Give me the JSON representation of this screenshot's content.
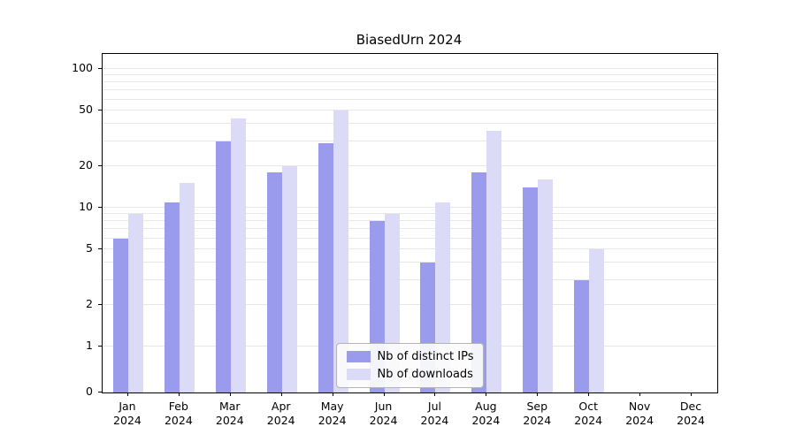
{
  "title": "BiasedUrn 2024",
  "colors": {
    "distinct_ips": "#9b9bee",
    "downloads": "#dbdbf8",
    "grid": "#e7e7e7",
    "axis": "#000000"
  },
  "legend": {
    "items": [
      {
        "label": "Nb of distinct IPs",
        "color_key": "distinct_ips"
      },
      {
        "label": "Nb of downloads",
        "color_key": "downloads"
      }
    ]
  },
  "x_axis": {
    "months": [
      "Jan",
      "Feb",
      "Mar",
      "Apr",
      "May",
      "Jun",
      "Jul",
      "Aug",
      "Sep",
      "Oct",
      "Nov",
      "Dec"
    ],
    "year": "2024"
  },
  "chart_data": {
    "type": "bar",
    "title": "BiasedUrn 2024",
    "categories": [
      "Jan 2024",
      "Feb 2024",
      "Mar 2024",
      "Apr 2024",
      "May 2024",
      "Jun 2024",
      "Jul 2024",
      "Aug 2024",
      "Sep 2024",
      "Oct 2024",
      "Nov 2024",
      "Dec 2024"
    ],
    "series": [
      {
        "name": "Nb of distinct IPs",
        "values": [
          6,
          11,
          30,
          18,
          29,
          8,
          4,
          18,
          14,
          3,
          0,
          0
        ]
      },
      {
        "name": "Nb of downloads",
        "values": [
          9,
          15,
          44,
          20,
          50,
          9,
          11,
          36,
          16,
          5,
          0,
          0
        ]
      }
    ],
    "yscale": "log-with-zero",
    "yticks": [
      0,
      1,
      2,
      5,
      10,
      20,
      50,
      100
    ],
    "gridlines": [
      1,
      2,
      3,
      4,
      5,
      6,
      7,
      8,
      9,
      10,
      20,
      30,
      40,
      50,
      60,
      70,
      80,
      90,
      100
    ],
    "ylim": [
      0,
      110
    ],
    "grid": true,
    "legend_position": "lower center"
  }
}
